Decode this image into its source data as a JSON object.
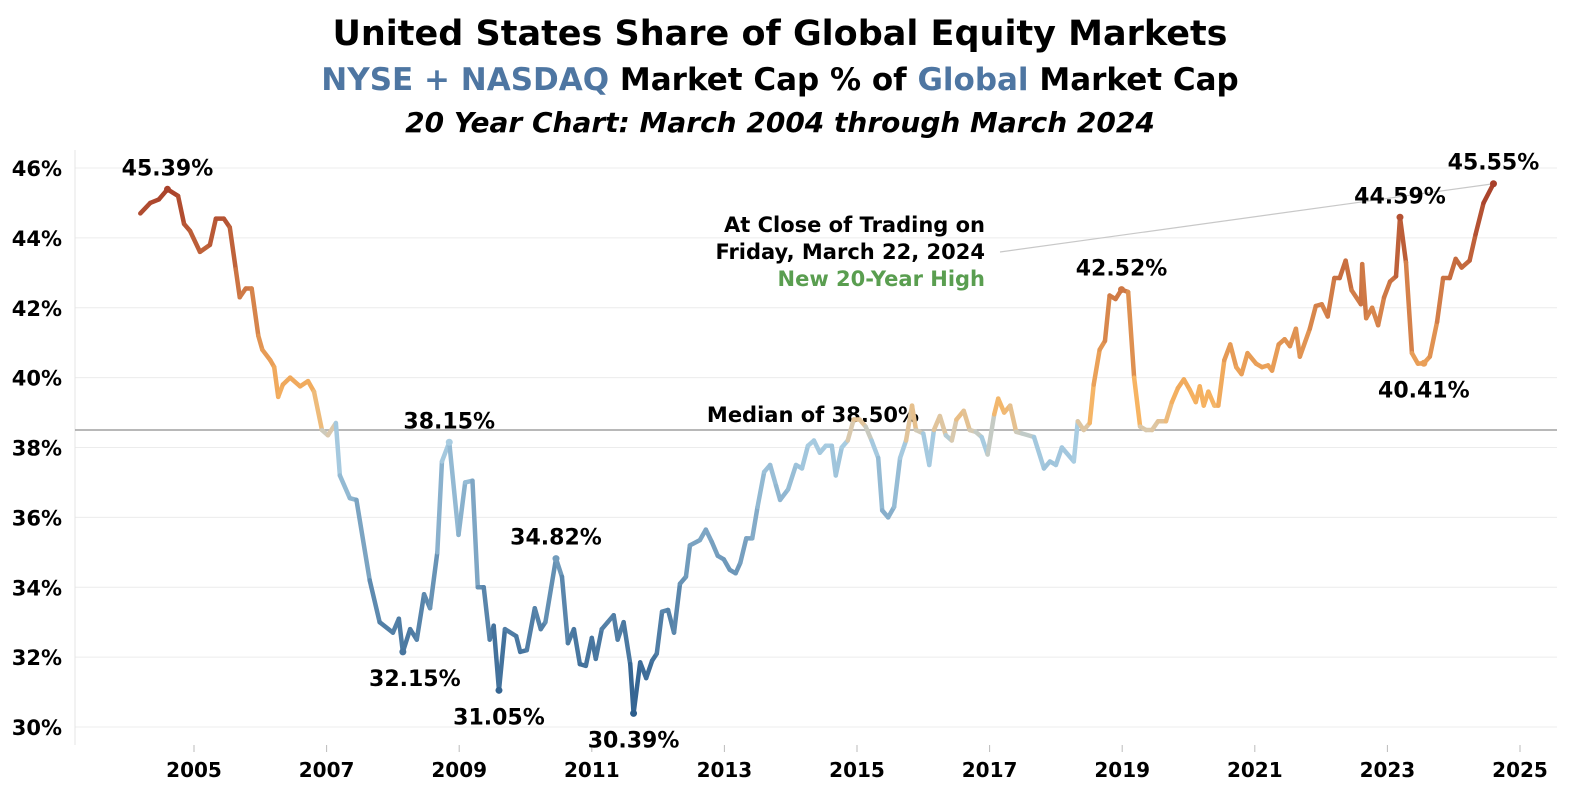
{
  "title": "United States Share of Global Equity Markets",
  "subtitle": {
    "part1": "NYSE + NASDAQ",
    "part2": " Market Cap % of ",
    "part3": "Global",
    "part4": " Market Cap"
  },
  "subtitle2": "20 Year Chart: March 2004 through March 2024",
  "note": {
    "line1": "At Close of Trading on",
    "line2": "Friday, March 22, 2024",
    "line3": "New 20-Year High"
  },
  "colors": {
    "low": "#2c5d8c",
    "midlow": "#a9cde2",
    "mid": "#d9c9ae",
    "midhigh": "#f7b462",
    "high": "#a8402a",
    "green": "#5a9e50",
    "blue_text": "#4e76a2"
  },
  "chart_data": {
    "type": "line",
    "title": "United States Share of Global Equity Markets",
    "xlabel": "",
    "ylabel": "",
    "ylim": [
      30,
      46
    ],
    "xlim": [
      2004,
      2025.5
    ],
    "yticks": [
      "30%",
      "32%",
      "34%",
      "36%",
      "38%",
      "40%",
      "42%",
      "44%",
      "46%"
    ],
    "ytick_values": [
      30,
      32,
      34,
      36,
      38,
      40,
      42,
      44,
      46
    ],
    "xticks": [
      "2005",
      "2007",
      "2009",
      "2011",
      "2013",
      "2015",
      "2017",
      "2019",
      "2021",
      "2023",
      "2025"
    ],
    "xtick_values": [
      2005,
      2007,
      2009,
      2011,
      2013,
      2015,
      2017,
      2019,
      2021,
      2023,
      2025
    ],
    "grid": true,
    "median": {
      "value": 38.5,
      "label": "Median of 38.50%"
    },
    "series": [
      {
        "name": "US share of global market cap (%)",
        "x": [
          2004.19,
          2004.34,
          2004.47,
          2004.6,
          2004.76,
          2004.85,
          2004.94,
          2005.09,
          2005.24,
          2005.33,
          2005.45,
          2005.54,
          2005.63,
          2005.69,
          2005.78,
          2005.87,
          2005.97,
          2006.03,
          2006.15,
          2006.21,
          2006.27,
          2006.34,
          2006.45,
          2006.6,
          2006.72,
          2006.81,
          2006.93,
          2007.02,
          2007.14,
          2007.2,
          2007.35,
          2007.45,
          2007.65,
          2007.8,
          2008.0,
          2008.09,
          2008.15,
          2008.26,
          2008.36,
          2008.47,
          2008.56,
          2008.67,
          2008.74,
          2008.85,
          2008.99,
          2009.09,
          2009.2,
          2009.28,
          2009.37,
          2009.46,
          2009.52,
          2009.6,
          2009.69,
          2009.86,
          2009.92,
          2010.02,
          2010.14,
          2010.23,
          2010.3,
          2010.46,
          2010.55,
          2010.64,
          2010.73,
          2010.82,
          2010.91,
          2011.0,
          2011.06,
          2011.15,
          2011.24,
          2011.33,
          2011.39,
          2011.48,
          2011.58,
          2011.63,
          2011.73,
          2011.82,
          2011.91,
          2011.98,
          2012.06,
          2012.15,
          2012.24,
          2012.33,
          2012.42,
          2012.48,
          2012.63,
          2012.72,
          2012.81,
          2012.9,
          2012.99,
          2013.08,
          2013.17,
          2013.24,
          2013.33,
          2013.42,
          2013.5,
          2013.6,
          2013.69,
          2013.78,
          2013.84,
          2013.96,
          2014.08,
          2014.17,
          2014.26,
          2014.35,
          2014.44,
          2014.53,
          2014.62,
          2014.68,
          2014.77,
          2014.86,
          2014.95,
          2015.04,
          2015.13,
          2015.22,
          2015.32,
          2015.38,
          2015.47,
          2015.56,
          2015.65,
          2015.74,
          2015.83,
          2015.89,
          2016.0,
          2016.09,
          2016.16,
          2016.25,
          2016.34,
          2016.43,
          2016.5,
          2016.61,
          2016.7,
          2016.79,
          2016.88,
          2016.97,
          2017.07,
          2017.13,
          2017.22,
          2017.31,
          2017.4,
          2017.49,
          2017.67,
          2017.82,
          2017.91,
          2018.0,
          2018.09,
          2018.27,
          2018.33,
          2018.42,
          2018.51,
          2018.57,
          2018.66,
          2018.74,
          2018.81,
          2018.9,
          2018.99,
          2019.09,
          2019.18,
          2019.27,
          2019.36,
          2019.45,
          2019.54,
          2019.66,
          2019.75,
          2019.84,
          2019.93,
          2020.02,
          2020.11,
          2020.17,
          2020.23,
          2020.3,
          2020.39,
          2020.45,
          2020.54,
          2020.63,
          2020.72,
          2020.8,
          2020.89,
          2021.02,
          2021.11,
          2021.2,
          2021.26,
          2021.36,
          2021.45,
          2021.53,
          2021.62,
          2021.68,
          2021.83,
          2021.92,
          2022.01,
          2022.1,
          2022.2,
          2022.28,
          2022.37,
          2022.46,
          2022.6,
          2022.62,
          2022.68,
          2022.77,
          2022.86,
          2022.95,
          2023.04,
          2023.13,
          2023.19,
          2023.28,
          2023.37,
          2023.46,
          2023.55,
          2023.64,
          2023.75,
          2023.84,
          2023.94,
          2024.03,
          2024.12,
          2024.24,
          2024.33,
          2024.45,
          2024.6
        ],
        "values": [
          44.7,
          45.0,
          45.1,
          45.39,
          45.2,
          44.4,
          44.2,
          43.6,
          43.8,
          44.55,
          44.55,
          44.3,
          43.1,
          42.3,
          42.55,
          42.55,
          41.2,
          40.8,
          40.5,
          40.3,
          39.45,
          39.8,
          40.0,
          39.75,
          39.9,
          39.6,
          38.5,
          38.35,
          38.7,
          37.2,
          36.55,
          36.5,
          34.2,
          33.0,
          32.7,
          33.1,
          32.15,
          32.8,
          32.5,
          33.8,
          33.4,
          35.0,
          37.6,
          38.15,
          35.5,
          37.0,
          37.05,
          34.0,
          34.0,
          32.5,
          32.9,
          31.05,
          32.8,
          32.6,
          32.15,
          32.2,
          33.4,
          32.8,
          33.0,
          34.82,
          34.3,
          32.4,
          32.8,
          31.8,
          31.75,
          32.55,
          31.95,
          32.8,
          33.0,
          33.2,
          32.5,
          33.0,
          31.8,
          30.39,
          31.85,
          31.4,
          31.9,
          32.1,
          33.3,
          33.35,
          32.7,
          34.1,
          34.3,
          35.2,
          35.35,
          35.65,
          35.3,
          34.9,
          34.8,
          34.5,
          34.4,
          34.7,
          35.4,
          35.4,
          36.3,
          37.3,
          37.5,
          36.9,
          36.5,
          36.8,
          37.5,
          37.4,
          38.05,
          38.2,
          37.85,
          38.05,
          38.05,
          37.2,
          38.0,
          38.2,
          38.8,
          38.8,
          38.6,
          38.2,
          37.7,
          36.2,
          36.0,
          36.3,
          37.7,
          38.2,
          39.2,
          38.5,
          38.4,
          37.5,
          38.5,
          38.9,
          38.35,
          38.2,
          38.8,
          39.05,
          38.5,
          38.45,
          38.3,
          37.8,
          38.95,
          39.4,
          39.0,
          39.2,
          38.45,
          38.4,
          38.3,
          37.4,
          37.6,
          37.5,
          38.0,
          37.6,
          38.75,
          38.5,
          38.7,
          39.8,
          40.8,
          41.05,
          42.35,
          42.25,
          42.52,
          42.45,
          40.0,
          38.6,
          38.5,
          38.5,
          38.75,
          38.75,
          39.3,
          39.7,
          39.95,
          39.65,
          39.3,
          39.75,
          39.2,
          39.6,
          39.2,
          39.2,
          40.5,
          40.95,
          40.3,
          40.1,
          40.7,
          40.4,
          40.3,
          40.35,
          40.2,
          40.95,
          41.1,
          40.9,
          41.4,
          40.6,
          41.4,
          42.05,
          42.1,
          41.75,
          42.85,
          42.85,
          43.35,
          42.5,
          42.1,
          43.25,
          41.7,
          42.0,
          41.5,
          42.3,
          42.75,
          42.9,
          44.59,
          43.3,
          40.7,
          40.4,
          40.41,
          40.6,
          41.6,
          42.85,
          42.85,
          43.4,
          43.15,
          43.35,
          44.1,
          45.0,
          45.55
        ]
      }
    ],
    "annotations": [
      {
        "text": "45.39%",
        "x": 2004.6,
        "value": 45.39,
        "position": "above"
      },
      {
        "text": "38.15%",
        "x": 2008.85,
        "value": 38.15,
        "position": "above"
      },
      {
        "text": "32.15%",
        "x": 2008.15,
        "value": 32.15,
        "position": "below"
      },
      {
        "text": "31.05%",
        "x": 2009.6,
        "value": 31.05,
        "position": "below"
      },
      {
        "text": "34.82%",
        "x": 2010.46,
        "value": 34.82,
        "position": "above"
      },
      {
        "text": "30.39%",
        "x": 2011.63,
        "value": 30.39,
        "position": "below"
      },
      {
        "text": "42.52%",
        "x": 2018.99,
        "value": 42.52,
        "position": "above"
      },
      {
        "text": "44.59%",
        "x": 2023.19,
        "value": 44.59,
        "position": "above"
      },
      {
        "text": "40.41%",
        "x": 2023.55,
        "value": 40.41,
        "position": "below"
      },
      {
        "text": "45.55%",
        "x": 2024.6,
        "value": 45.55,
        "position": "above"
      }
    ]
  }
}
